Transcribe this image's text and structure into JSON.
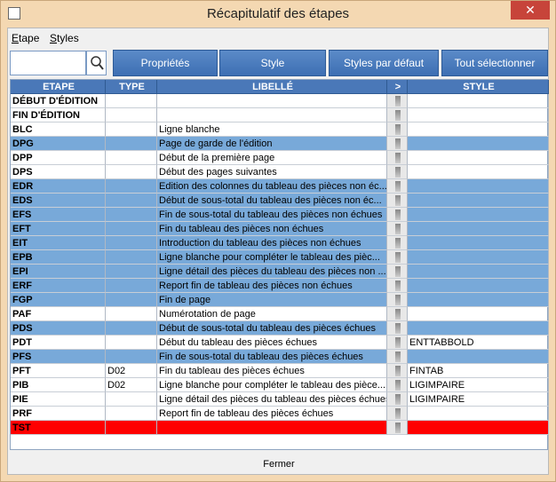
{
  "window": {
    "title": "Récapitulatif des étapes"
  },
  "menu": [
    "Etape",
    "Styles"
  ],
  "toolbar": [
    "Propriétés",
    "Style",
    "Styles par défaut",
    "Tout sélectionner"
  ],
  "table": {
    "headers": [
      "ETAPE",
      "TYPE",
      "LIBELLÉ",
      ">",
      "STYLE"
    ],
    "rows": [
      {
        "etape": "DÉBUT D'ÉDITION"
      },
      {
        "etape": "FIN D'ÉDITION"
      },
      {
        "etape": "BLC",
        "libelle": "Ligne blanche"
      },
      {
        "etape": "DPG",
        "libelle": "Page de garde de l'édition",
        "color": "#78a9d9"
      },
      {
        "etape": "DPP",
        "libelle": "Début de la première page"
      },
      {
        "etape": "DPS",
        "libelle": "Début des pages suivantes"
      },
      {
        "etape": "EDR",
        "libelle": "Edition des colonnes du tableau des pièces non éc...",
        "color": "#78a9d9"
      },
      {
        "etape": "EDS",
        "libelle": "Début de sous-total du tableau des pièces non éc...",
        "color": "#78a9d9"
      },
      {
        "etape": "EFS",
        "libelle": "Fin de sous-total du tableau des pièces non échues",
        "color": "#78a9d9"
      },
      {
        "etape": "EFT",
        "libelle": "Fin du tableau des pièces non échues",
        "color": "#78a9d9"
      },
      {
        "etape": "EIT",
        "libelle": "Introduction du tableau des pièces non échues",
        "color": "#78a9d9"
      },
      {
        "etape": "EPB",
        "libelle": "Ligne blanche pour compléter le tableau des pièc...",
        "color": "#78a9d9"
      },
      {
        "etape": "EPI",
        "libelle": "Ligne détail des pièces du tableau des pièces non ...",
        "color": "#78a9d9"
      },
      {
        "etape": "ERF",
        "libelle": "Report fin de tableau des pièces non échues",
        "color": "#78a9d9"
      },
      {
        "etape": "FGP",
        "libelle": "Fin de page",
        "color": "#78a9d9"
      },
      {
        "etape": "PAF",
        "libelle": "Numérotation de page"
      },
      {
        "etape": "PDS",
        "libelle": "Début de sous-total du tableau des pièces échues",
        "color": "#78a9d9"
      },
      {
        "etape": "PDT",
        "libelle": "Début du tableau des pièces échues",
        "style": "ENTTABBOLD"
      },
      {
        "etape": "PFS",
        "libelle": "Fin de sous-total du tableau des pièces échues",
        "color": "#78a9d9"
      },
      {
        "etape": "PFT",
        "type": "D02",
        "libelle": "Fin du tableau des pièces échues",
        "style": "FINTAB"
      },
      {
        "etape": "PIB",
        "type": "D02",
        "libelle": "Ligne blanche pour compléter le tableau des pièce...",
        "style": "LIGIMPAIRE"
      },
      {
        "etape": "PIE",
        "libelle": "Ligne détail des pièces du tableau des pièces échues",
        "style": "LIGIMPAIRE"
      },
      {
        "etape": "PRF",
        "libelle": "Report fin de tableau des pièces échues"
      },
      {
        "etape": "TST",
        "color": "#ff0000"
      }
    ]
  },
  "footer": {
    "button": "Fermer"
  }
}
